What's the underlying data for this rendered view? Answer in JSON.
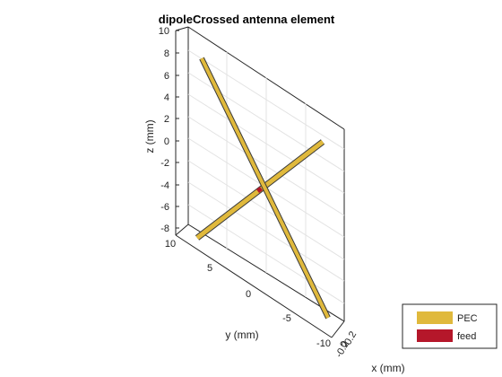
{
  "figure": {
    "title": "dipoleCrossed antenna element",
    "z_axis": {
      "label": "z (mm)",
      "ticks": [
        "10",
        "8",
        "6",
        "4",
        "2",
        "0",
        "-2",
        "-4",
        "-6",
        "-8"
      ]
    },
    "y_axis": {
      "label": "y (mm)",
      "ticks": [
        "10",
        "5",
        "0",
        "-5",
        "-10"
      ]
    },
    "x_axis": {
      "label": "x (mm)",
      "ticks": [
        "0.2",
        "0",
        "-0.2"
      ]
    },
    "legend": {
      "items": [
        {
          "label": "PEC",
          "color": "#e0b93c"
        },
        {
          "label": "feed",
          "color": "#b5172a"
        }
      ]
    },
    "colors": {
      "conductor": "#e0b93c",
      "conductor_edge": "#3a3a3a",
      "feed": "#b5172a",
      "axes": "#262626",
      "grid": "#e3e3e3"
    }
  }
}
